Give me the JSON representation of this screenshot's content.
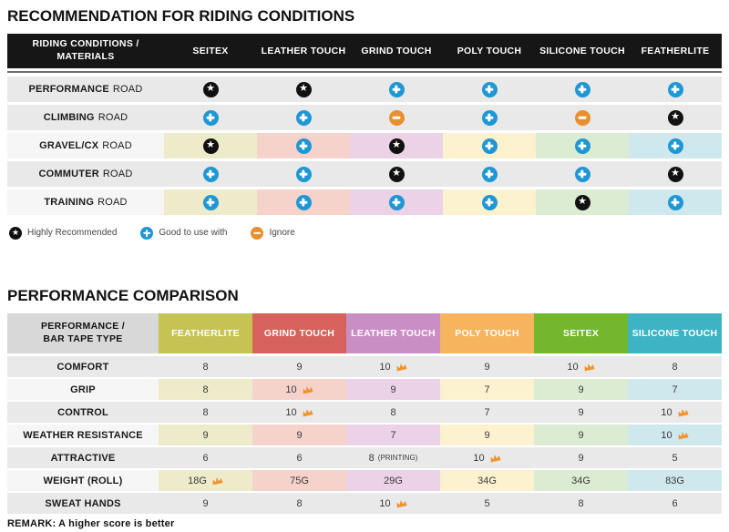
{
  "colors": {
    "header1_bg": "#161616",
    "row_gray": "#e9e9e9",
    "row_light": "#f6f6f6",
    "tints": [
      "#edebca",
      "#f5d3cb",
      "#ebd2e7",
      "#fdf2cf",
      "#dcecd2",
      "#cee8ed"
    ],
    "icon_star_bg": "#111111",
    "icon_plus_bg": "#1f97d4",
    "icon_minus_bg": "#e88f2f",
    "crown": "#f0922e",
    "header2_label_bg": "#d8d8d8"
  },
  "chart_data": [
    {
      "type": "table",
      "title": "RECOMMENDATION FOR RIDING CONDITIONS",
      "columns": [
        "RIDING CONDITIONS / MATERIALS",
        "SEITEX",
        "LEATHER TOUCH",
        "GRIND TOUCH",
        "POLY TOUCH",
        "SILICONE TOUCH",
        "FEATHERLITE"
      ],
      "rows": [
        {
          "label_bold": "PERFORMANCE",
          "label_rest": "ROAD",
          "tinted": false,
          "cells": [
            "star",
            "star",
            "plus",
            "plus",
            "plus",
            "plus"
          ]
        },
        {
          "label_bold": "CLIMBING",
          "label_rest": "ROAD",
          "tinted": false,
          "cells": [
            "plus",
            "plus",
            "minus",
            "plus",
            "minus",
            "star"
          ]
        },
        {
          "label_bold": "GRAVEL/CX",
          "label_rest": "ROAD",
          "tinted": true,
          "cells": [
            "star",
            "plus",
            "star",
            "plus",
            "plus",
            "plus"
          ]
        },
        {
          "label_bold": "COMMUTER",
          "label_rest": "ROAD",
          "tinted": false,
          "cells": [
            "plus",
            "plus",
            "star",
            "plus",
            "plus",
            "star"
          ]
        },
        {
          "label_bold": "TRAINING",
          "label_rest": "ROAD",
          "tinted": true,
          "cells": [
            "plus",
            "plus",
            "plus",
            "plus",
            "star",
            "plus"
          ]
        }
      ],
      "legend": [
        {
          "icon": "star-icon",
          "type": "star",
          "label": "Highly Recommended"
        },
        {
          "icon": "plus-icon",
          "type": "plus",
          "label": "Good to use with"
        },
        {
          "icon": "minus-icon",
          "type": "minus",
          "label": "Ignore"
        }
      ]
    },
    {
      "type": "table",
      "title": "PERFORMANCE COMPARISON",
      "header_label": "PERFORMANCE / BAR TAPE TYPE",
      "columns": [
        {
          "label": "FEATHERLITE",
          "color": "#c7c254"
        },
        {
          "label": "GRIND TOUCH",
          "color": "#d6635b"
        },
        {
          "label": "LEATHER TOUCH",
          "color": "#c98fc5"
        },
        {
          "label": "POLY TOUCH",
          "color": "#f6b45f"
        },
        {
          "label": "SEITEX",
          "color": "#72b72d"
        },
        {
          "label": "SILICONE TOUCH",
          "color": "#3eb3c3"
        }
      ],
      "rows": [
        {
          "label": "COMFORT",
          "tinted": false,
          "cells": [
            {
              "text": "8"
            },
            {
              "text": "9"
            },
            {
              "text": "10",
              "crown": true
            },
            {
              "text": "9"
            },
            {
              "text": "10",
              "crown": true
            },
            {
              "text": "8"
            }
          ]
        },
        {
          "label": "GRIP",
          "tinted": true,
          "cells": [
            {
              "text": "8"
            },
            {
              "text": "10",
              "crown": true
            },
            {
              "text": "9"
            },
            {
              "text": "7"
            },
            {
              "text": "9"
            },
            {
              "text": "7"
            }
          ]
        },
        {
          "label": "CONTROL",
          "tinted": false,
          "cells": [
            {
              "text": "8"
            },
            {
              "text": "10",
              "crown": true
            },
            {
              "text": "8"
            },
            {
              "text": "7"
            },
            {
              "text": "9"
            },
            {
              "text": "10",
              "crown": true
            }
          ]
        },
        {
          "label": "WEATHER RESISTANCE",
          "tinted": true,
          "cells": [
            {
              "text": "9"
            },
            {
              "text": "9"
            },
            {
              "text": "7"
            },
            {
              "text": "9"
            },
            {
              "text": "9"
            },
            {
              "text": "10",
              "crown": true
            }
          ]
        },
        {
          "label": "ATTRACTIVE",
          "tinted": false,
          "cells": [
            {
              "text": "6"
            },
            {
              "text": "6"
            },
            {
              "text": "8",
              "note": "(PRINTING)"
            },
            {
              "text": "10",
              "crown": true
            },
            {
              "text": "9"
            },
            {
              "text": "5"
            }
          ]
        },
        {
          "label": "WEIGHT (ROLL)",
          "tinted": true,
          "cells": [
            {
              "text": "18G",
              "crown": true
            },
            {
              "text": "75G"
            },
            {
              "text": "29G"
            },
            {
              "text": "34G"
            },
            {
              "text": "34G"
            },
            {
              "text": "83G"
            }
          ]
        },
        {
          "label": "SWEAT HANDS",
          "tinted": false,
          "cells": [
            {
              "text": "9"
            },
            {
              "text": "8"
            },
            {
              "text": "10",
              "crown": true
            },
            {
              "text": "5"
            },
            {
              "text": "8"
            },
            {
              "text": "6"
            }
          ]
        }
      ],
      "remark": "REMARK: A higher score is better"
    }
  ]
}
